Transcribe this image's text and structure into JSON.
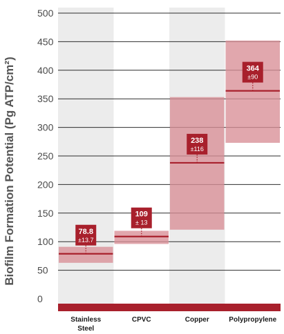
{
  "chart_data": {
    "type": "bar",
    "title": "",
    "xlabel": "",
    "ylabel": "Biofilm Formation Potential (Pg ATP/cm²)",
    "ylim": [
      0,
      500
    ],
    "yticks": [
      0,
      50,
      100,
      150,
      200,
      250,
      300,
      350,
      400,
      450,
      500
    ],
    "grid": true,
    "categories": [
      [
        "Stainless",
        "Steel"
      ],
      [
        "CPVC"
      ],
      [
        "Copper"
      ],
      [
        "Polypropylene"
      ]
    ],
    "values": [
      78.8,
      109,
      238,
      364
    ],
    "errors": [
      13.7,
      13,
      116,
      90
    ],
    "value_labels": [
      "78.8",
      "109",
      "238",
      "364"
    ],
    "error_labels": [
      "±13.7",
      "± 13",
      "±116",
      "±90"
    ],
    "band_ranges": [
      [
        63,
        91
      ],
      [
        96,
        119
      ],
      [
        121,
        353
      ],
      [
        273,
        452
      ]
    ],
    "colors": {
      "line": "#a8202c",
      "band": "#d98e96",
      "column_shade": "#ececec",
      "grid": "#2b2b2b",
      "baseline": "#a8202c",
      "label_box": "#a8202c"
    }
  }
}
